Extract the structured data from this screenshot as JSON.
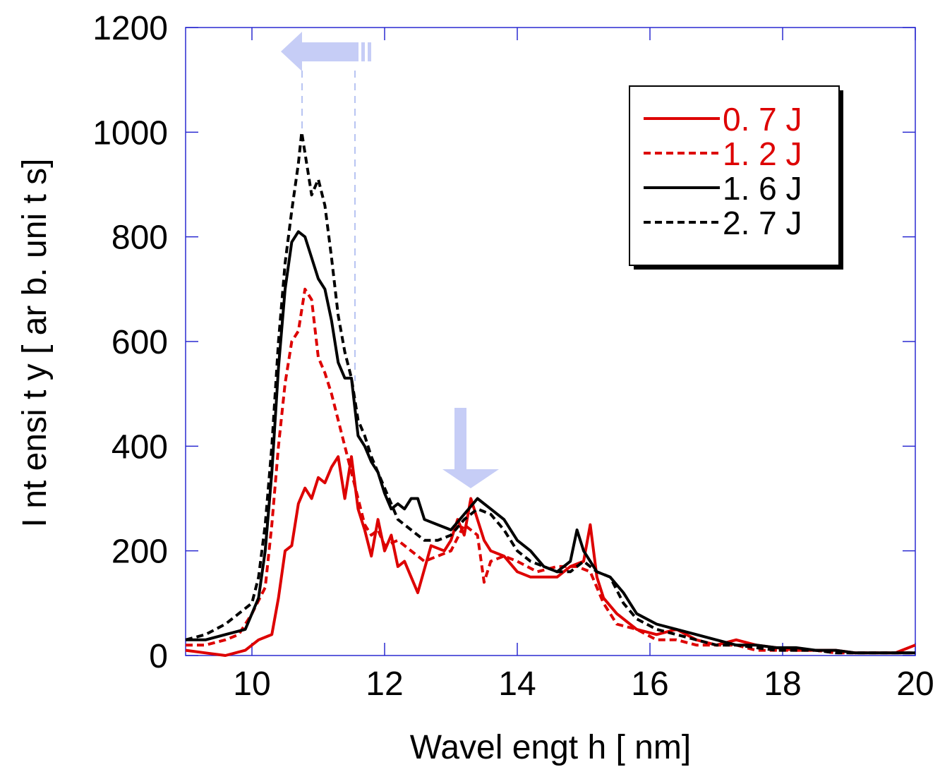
{
  "chart_data": {
    "type": "line",
    "title": "",
    "xlabel": "Wavel engt h  [ nm]",
    "ylabel": "I nt ensi t y  [ ar b.   uni t s]",
    "xlim": [
      9,
      20
    ],
    "ylim": [
      0,
      1200
    ],
    "xticks": [
      10,
      12,
      14,
      16,
      18,
      20
    ],
    "yticks": [
      0,
      200,
      400,
      600,
      800,
      1000,
      1200
    ],
    "xtick_labels": [
      "10",
      "12",
      "14",
      "16",
      "18",
      "20"
    ],
    "ytick_labels": [
      "0",
      "200",
      "400",
      "600",
      "800",
      "1000",
      "1200"
    ],
    "grid": false,
    "legend_position": "top-right",
    "series": [
      {
        "name": "0. 7  J",
        "color": "#dd0000",
        "style": "solid",
        "x": [
          9.0,
          9.3,
          9.6,
          9.9,
          10.1,
          10.3,
          10.4,
          10.5,
          10.6,
          10.7,
          10.8,
          10.9,
          11.0,
          11.1,
          11.2,
          11.3,
          11.4,
          11.5,
          11.6,
          11.7,
          11.8,
          11.9,
          12.0,
          12.1,
          12.2,
          12.3,
          12.4,
          12.5,
          12.7,
          12.9,
          13.0,
          13.1,
          13.2,
          13.3,
          13.4,
          13.5,
          13.6,
          13.8,
          14.0,
          14.2,
          14.4,
          14.6,
          14.8,
          15.0,
          15.1,
          15.2,
          15.3,
          15.5,
          15.8,
          16.1,
          16.4,
          16.7,
          17.0,
          17.3,
          17.6,
          17.9,
          18.2,
          18.5,
          18.8,
          19.1,
          19.4,
          19.7,
          20.0
        ],
        "y": [
          10,
          5,
          0,
          10,
          30,
          40,
          110,
          200,
          210,
          290,
          320,
          300,
          340,
          330,
          360,
          380,
          300,
          380,
          280,
          240,
          190,
          260,
          200,
          230,
          170,
          180,
          150,
          120,
          210,
          200,
          220,
          260,
          230,
          300,
          260,
          220,
          200,
          190,
          160,
          150,
          150,
          150,
          170,
          180,
          250,
          150,
          110,
          80,
          50,
          40,
          50,
          30,
          20,
          30,
          20,
          15,
          10,
          10,
          10,
          5,
          5,
          5,
          20
        ]
      },
      {
        "name": "1. 2  J",
        "color": "#dd0000",
        "style": "dashed",
        "x": [
          9.0,
          9.3,
          9.6,
          9.8,
          10.0,
          10.2,
          10.3,
          10.4,
          10.5,
          10.6,
          10.7,
          10.8,
          10.9,
          11.0,
          11.1,
          11.2,
          11.3,
          11.4,
          11.5,
          11.6,
          11.7,
          11.8,
          11.9,
          12.0,
          12.2,
          12.4,
          12.6,
          12.8,
          13.0,
          13.2,
          13.4,
          13.5,
          13.6,
          13.8,
          14.0,
          14.3,
          14.6,
          14.9,
          15.1,
          15.3,
          15.5,
          15.8,
          16.1,
          16.4,
          16.7,
          17.0,
          17.3,
          17.6,
          17.9,
          18.2,
          18.5,
          18.8,
          19.1,
          19.4,
          19.7,
          20.0
        ],
        "y": [
          20,
          20,
          30,
          40,
          80,
          130,
          250,
          400,
          520,
          600,
          620,
          700,
          680,
          570,
          540,
          500,
          450,
          400,
          350,
          300,
          250,
          230,
          240,
          210,
          220,
          200,
          180,
          190,
          200,
          250,
          230,
          140,
          180,
          190,
          180,
          160,
          170,
          170,
          160,
          100,
          60,
          50,
          30,
          30,
          20,
          20,
          20,
          10,
          10,
          10,
          10,
          5,
          5,
          5,
          5,
          5
        ]
      },
      {
        "name": "1. 6  J",
        "color": "#000000",
        "style": "solid",
        "x": [
          9.0,
          9.3,
          9.6,
          9.9,
          10.1,
          10.2,
          10.3,
          10.4,
          10.5,
          10.6,
          10.7,
          10.8,
          10.9,
          11.0,
          11.1,
          11.2,
          11.3,
          11.4,
          11.5,
          11.6,
          11.7,
          11.8,
          11.9,
          12.0,
          12.1,
          12.2,
          12.3,
          12.4,
          12.5,
          12.6,
          12.8,
          13.0,
          13.2,
          13.4,
          13.6,
          13.8,
          14.0,
          14.2,
          14.4,
          14.6,
          14.8,
          14.9,
          15.0,
          15.2,
          15.4,
          15.6,
          15.8,
          16.1,
          16.4,
          16.7,
          17.0,
          17.3,
          17.6,
          17.9,
          18.2,
          18.5,
          18.8,
          19.1,
          19.4,
          19.7,
          20.0
        ],
        "y": [
          30,
          30,
          40,
          50,
          110,
          200,
          350,
          550,
          700,
          790,
          810,
          800,
          760,
          720,
          700,
          640,
          560,
          530,
          530,
          420,
          400,
          370,
          350,
          310,
          280,
          290,
          280,
          300,
          300,
          260,
          250,
          240,
          270,
          300,
          280,
          260,
          220,
          200,
          170,
          160,
          180,
          240,
          200,
          160,
          150,
          120,
          80,
          60,
          50,
          40,
          30,
          20,
          20,
          15,
          15,
          10,
          10,
          5,
          5,
          5,
          5
        ]
      },
      {
        "name": "2. 7  J",
        "color": "#000000",
        "style": "dashed",
        "x": [
          9.0,
          9.3,
          9.6,
          9.8,
          10.0,
          10.1,
          10.2,
          10.3,
          10.4,
          10.5,
          10.6,
          10.7,
          10.75,
          10.8,
          10.9,
          11.0,
          11.1,
          11.2,
          11.3,
          11.4,
          11.5,
          11.6,
          11.7,
          11.8,
          11.9,
          12.0,
          12.2,
          12.4,
          12.6,
          12.8,
          13.0,
          13.2,
          13.4,
          13.6,
          13.8,
          14.0,
          14.2,
          14.4,
          14.6,
          14.8,
          15.0,
          15.2,
          15.4,
          15.6,
          15.8,
          16.1,
          16.4,
          16.7,
          17.0,
          17.3,
          17.6,
          17.9,
          18.2,
          18.5,
          18.8,
          19.1,
          19.4,
          19.7,
          20.0
        ],
        "y": [
          30,
          40,
          60,
          80,
          100,
          150,
          250,
          400,
          600,
          750,
          850,
          940,
          1000,
          960,
          880,
          910,
          860,
          760,
          650,
          580,
          530,
          450,
          420,
          380,
          350,
          320,
          260,
          240,
          220,
          220,
          230,
          260,
          280,
          270,
          240,
          200,
          180,
          170,
          160,
          160,
          180,
          160,
          150,
          100,
          70,
          50,
          40,
          30,
          20,
          20,
          15,
          10,
          10,
          10,
          5,
          5,
          5,
          5,
          5
        ]
      }
    ]
  }
}
